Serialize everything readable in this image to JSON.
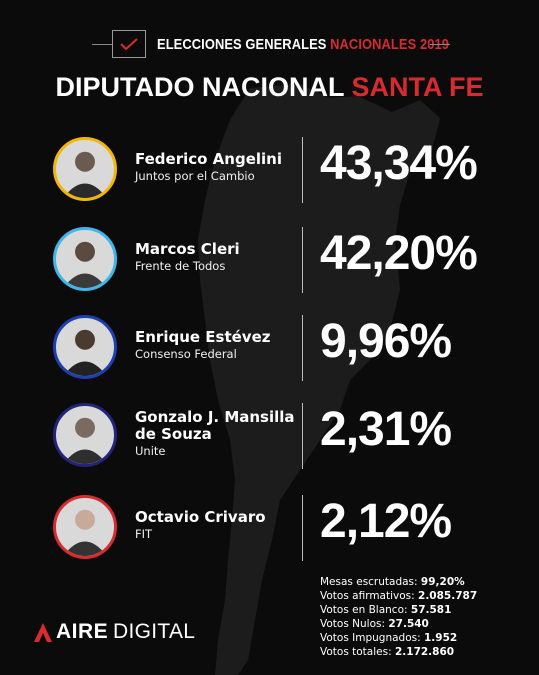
{
  "header": {
    "title_main": "ELECCIONES GENERALES",
    "title_accent": "NACIONALES 2019"
  },
  "title": {
    "main": "DIPUTADO NACIONAL",
    "accent": "SANTA FE"
  },
  "candidates": [
    {
      "name": "Federico Angelini",
      "party": "Juntos por el Cambio",
      "percent": "43,34%",
      "color": "#f2b705"
    },
    {
      "name": "Marcos Cleri",
      "party": "Frente de Todos",
      "percent": "42,20%",
      "color": "#3fb6e8"
    },
    {
      "name": "Enrique Estévez",
      "party": "Consenso Federal",
      "percent": "9,96%",
      "color": "#1e3fb0"
    },
    {
      "name": "Gonzalo J. Mansilla de Souza",
      "party": "Unite",
      "percent": "2,31%",
      "color": "#24247a"
    },
    {
      "name": "Octavio Crivaro",
      "party": "FIT",
      "percent": "2,12%",
      "color": "#d62b2f"
    }
  ],
  "stats": [
    {
      "label": "Mesas escrutadas:",
      "value": "99,20%"
    },
    {
      "label": "Votos afirmativos:",
      "value": "2.085.787"
    },
    {
      "label": "Votos en Blanco:",
      "value": "57.581"
    },
    {
      "label": "Votos Nulos:",
      "value": "27.540"
    },
    {
      "label": "Votos Impugnados:",
      "value": "1.952"
    },
    {
      "label": "Votos totales:",
      "value": "2.172.860"
    }
  ],
  "brand": {
    "part1": "AIRE",
    "part2": "DIGITAL",
    "color": "#d62b2f"
  },
  "colors": {
    "accent": "#d62b2f",
    "background": "#0b0b0b",
    "map": "#1c1c1c"
  }
}
